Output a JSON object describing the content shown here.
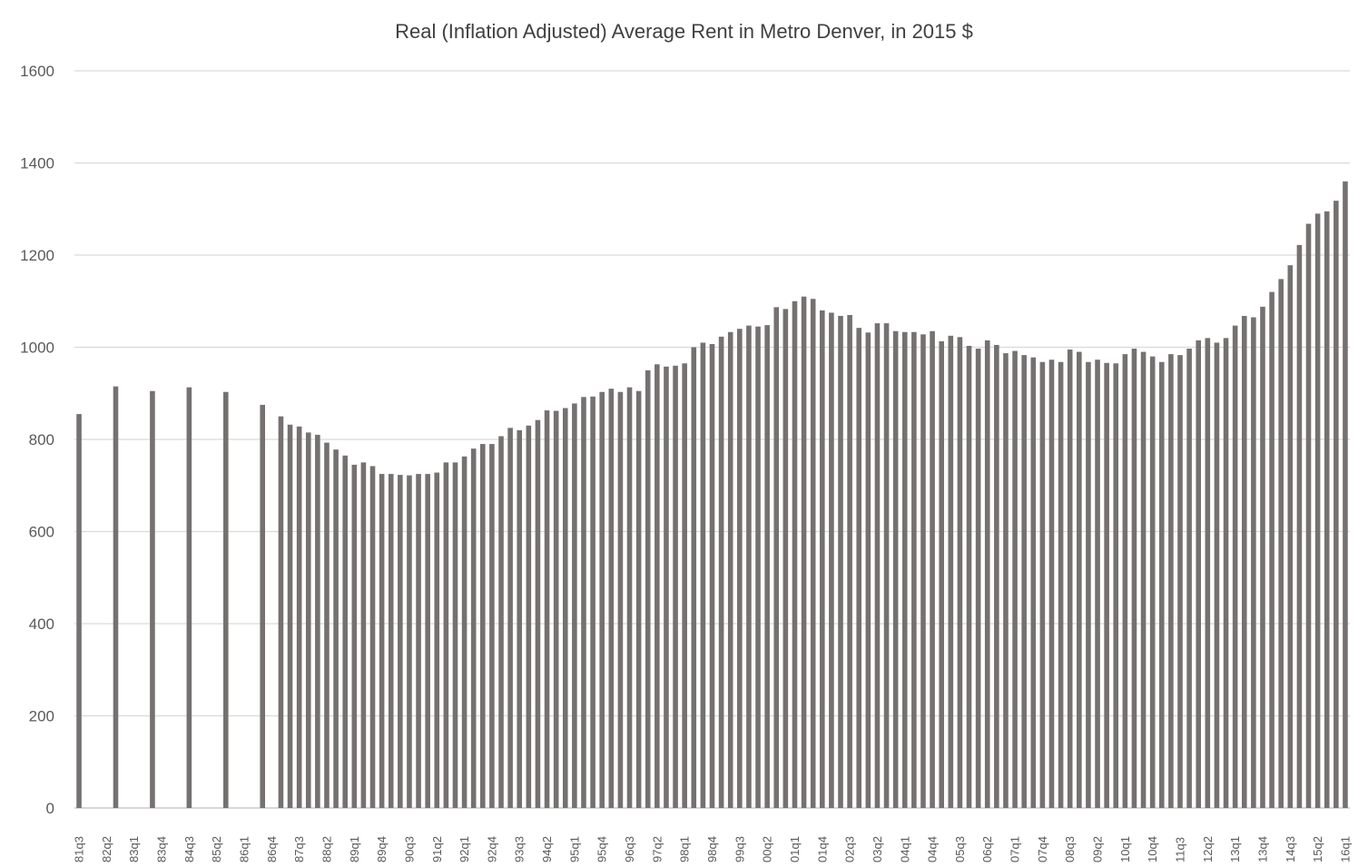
{
  "chart_data": {
    "type": "bar",
    "title": "Real (Inflation Adjusted) Average Rent in Metro Denver, in 2015 $",
    "xlabel": "",
    "ylabel": "",
    "ylim": [
      0,
      1600
    ],
    "yticks": [
      0,
      200,
      400,
      600,
      800,
      1000,
      1200,
      1400,
      1600
    ],
    "grid": true,
    "legend": "none",
    "bar_color": "#767171",
    "tick_label_every": 3,
    "categories": [
      "81q3",
      "81q4",
      "82q1",
      "82q2",
      "82q3",
      "82q4",
      "83q1",
      "83q2",
      "83q3",
      "83q4",
      "84q1",
      "84q2",
      "84q3",
      "84q4",
      "85q1",
      "85q2",
      "85q3",
      "85q4",
      "86q1",
      "86q2",
      "86q3",
      "86q4",
      "87q1",
      "87q2",
      "87q3",
      "87q4",
      "88q1",
      "88q2",
      "88q3",
      "88q4",
      "89q1",
      "89q2",
      "89q3",
      "89q4",
      "90q1",
      "90q2",
      "90q3",
      "90q4",
      "91q1",
      "91q2",
      "91q3",
      "91q4",
      "92q1",
      "92q2",
      "92q3",
      "92q4",
      "93q1",
      "93q2",
      "93q3",
      "93q4",
      "94q1",
      "94q2",
      "94q3",
      "94q4",
      "95q1",
      "95q2",
      "95q3",
      "95q4",
      "96q1",
      "96q2",
      "96q3",
      "96q4",
      "97q1",
      "97q2",
      "97q3",
      "97q4",
      "98q1",
      "98q2",
      "98q3",
      "98q4",
      "99q1",
      "99q2",
      "99q3",
      "99q4",
      "00q1",
      "00q2",
      "00q3",
      "00q4",
      "01q1",
      "01q2",
      "01q3",
      "01q4",
      "02q1",
      "02q2",
      "02q3",
      "02q4",
      "03q1",
      "03q2",
      "03q3",
      "03q4",
      "04q1",
      "04q2",
      "04q3",
      "04q4",
      "05q1",
      "05q2",
      "05q3",
      "05q4",
      "06q1",
      "06q2",
      "06q3",
      "06q4",
      "07q1",
      "07q2",
      "07q3",
      "07q4",
      "08q1",
      "08q2",
      "08q3",
      "08q4",
      "09q1",
      "09q2",
      "09q3",
      "09q4",
      "10q1",
      "10q2",
      "10q3",
      "10q4",
      "11q1",
      "11q2",
      "11q3",
      "11q4",
      "12q1",
      "12q2",
      "12q3",
      "12q4",
      "13q1",
      "13q2",
      "13q3",
      "13q4",
      "14q1",
      "14q2",
      "14q3",
      "14q4",
      "15q1",
      "15q2",
      "15q3",
      "15q4",
      "16q1"
    ],
    "values": [
      855,
      null,
      null,
      null,
      915,
      null,
      null,
      null,
      905,
      null,
      null,
      null,
      913,
      null,
      null,
      null,
      903,
      null,
      null,
      null,
      875,
      null,
      850,
      832,
      828,
      815,
      810,
      793,
      778,
      765,
      745,
      750,
      742,
      725,
      725,
      723,
      722,
      725,
      725,
      728,
      750,
      750,
      763,
      780,
      790,
      790,
      807,
      825,
      820,
      830,
      842,
      863,
      862,
      868,
      878,
      892,
      893,
      903,
      910,
      903,
      913,
      905,
      950,
      963,
      958,
      960,
      965,
      1000,
      1010,
      1007,
      1023,
      1033,
      1040,
      1047,
      1045,
      1048,
      1087,
      1083,
      1100,
      1110,
      1105,
      1080,
      1075,
      1068,
      1070,
      1042,
      1032,
      1052,
      1052,
      1035,
      1033,
      1033,
      1028,
      1035,
      1013,
      1025,
      1022,
      1003,
      997,
      1015,
      1005,
      987,
      992,
      983,
      978,
      968,
      973,
      968,
      995,
      990,
      968,
      973,
      966,
      965,
      985,
      997,
      990,
      980,
      968,
      985,
      983,
      997,
      1015,
      1020,
      1010,
      1020,
      1047,
      1068,
      1065,
      1088,
      1120,
      1148,
      1178,
      1222,
      1268,
      1290,
      1295,
      1318,
      1360
    ]
  }
}
